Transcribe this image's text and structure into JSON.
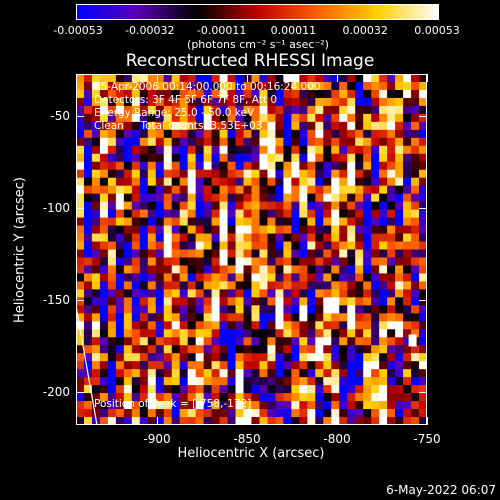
{
  "colorbar": {
    "tick_labels": [
      "-0.00053",
      "-0.00032",
      "-0.00011",
      "0.00011",
      "0.00032",
      "0.00053"
    ],
    "units_label": "(photons cm⁻² s⁻¹ asec⁻²)"
  },
  "title": "Reconstructed RHESSI Image",
  "annotations": {
    "time_range": "25-Apr-2006 00:14:00.000 to 00:16:24.000",
    "detectors": "Detectors: 3F 4F 5F 6F 7F 8F, Att 0",
    "energy_range": "Energy Range: 25.0 - 50.0 keV",
    "clean_counts": "Clean     Total counts: 3.53E+03",
    "peak_position": "Position of Peak = [-758,-172]"
  },
  "axes": {
    "xlabel": "Heliocentric X (arcsec)",
    "ylabel": "Heliocentric Y (arcsec)",
    "x_tick_labels": [
      "-900",
      "-850",
      "-800",
      "-750"
    ],
    "y_tick_labels": [
      "-50",
      "-100",
      "-150",
      "-200"
    ]
  },
  "footer": {
    "timestamp": "6-May-2022 06:07"
  },
  "chart_data": {
    "type": "heatmap",
    "title": "Reconstructed RHESSI Image",
    "xlabel": "Heliocentric X (arcsec)",
    "ylabel": "Heliocentric Y (arcsec)",
    "xlim": [
      -945,
      -750
    ],
    "ylim": [
      -218,
      -27
    ],
    "x_ticks": [
      -900,
      -850,
      -800,
      -750
    ],
    "y_ticks": [
      -50,
      -100,
      -150,
      -200
    ],
    "colorbar_range": [
      -0.00053,
      0.00053
    ],
    "colorbar_ticks": [
      -0.00053,
      -0.00032,
      -0.00011,
      0.00011,
      0.00032,
      0.00053
    ],
    "colormap": [
      "#0000ff",
      "#5a00b4",
      "#000000",
      "#c00000",
      "#ff6000",
      "#ffd000",
      "#ffffff"
    ],
    "peak_position": [
      -758,
      -172
    ],
    "limb_color": "#ffffff"
  }
}
